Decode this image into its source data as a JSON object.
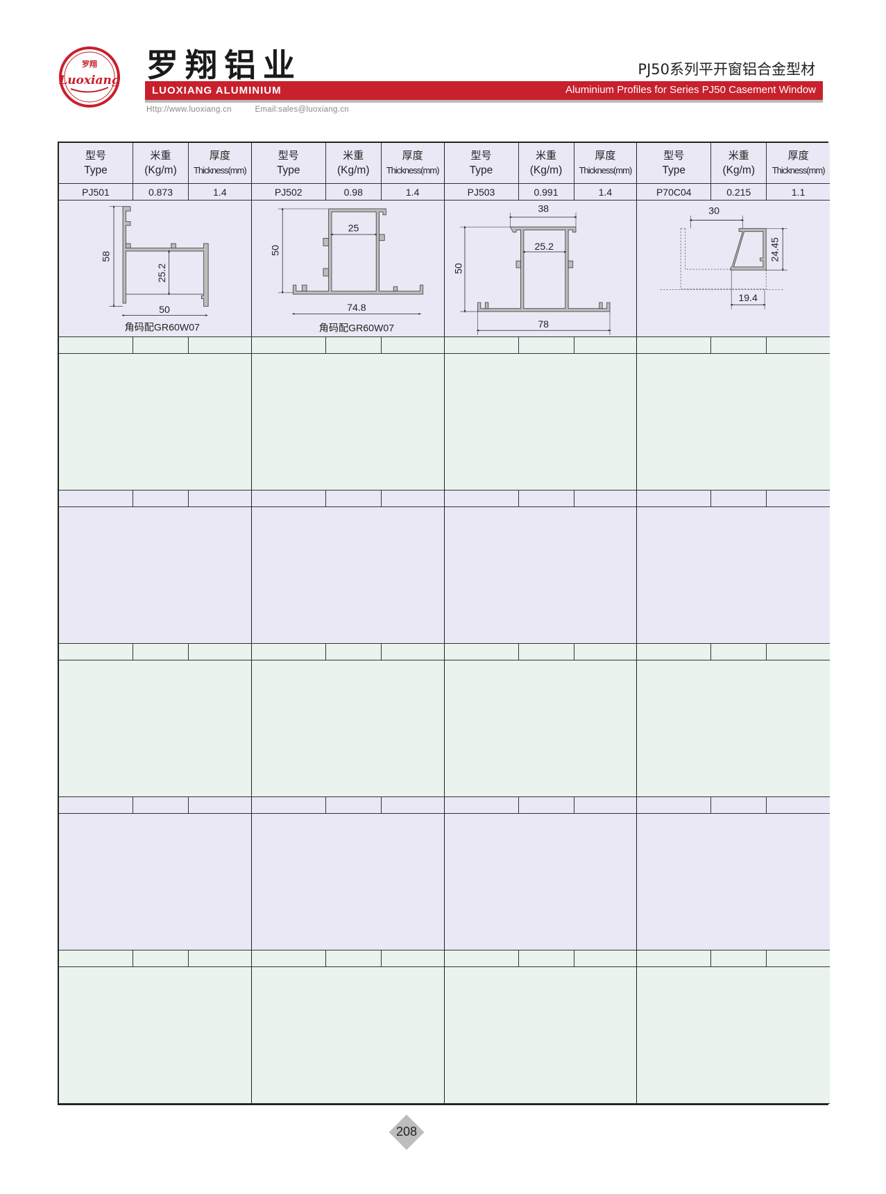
{
  "header": {
    "logo_text_cn": "罗翔",
    "logo_text_en": "Luoxiang",
    "brand_cn": "罗翔铝业",
    "brand_en": "LUOXIANG ALUMINIUM",
    "title_cn": "PJ50系列平开窗铝合金型材",
    "subtitle_en": "Aluminium Profiles for Series PJ50 Casement Window",
    "website": "Http://www.luoxiang.cn",
    "email": "Email:sales@luoxiang.cn",
    "colors": {
      "brand_red": "#c8202c",
      "row_lavender": "#e9e8f4",
      "row_green": "#eaf3ee"
    }
  },
  "table": {
    "columns": [
      {
        "cn": "型号",
        "en": "Type"
      },
      {
        "cn": "米重",
        "en": "(Kg/m)"
      },
      {
        "cn": "厚度",
        "en": "Thickness(mm)"
      }
    ],
    "profiles": [
      {
        "type": "PJ501",
        "weight": "0.873",
        "thickness": "1.4",
        "dims": {
          "height": "58",
          "inner": "25.2",
          "width": "50"
        },
        "caption": "角码配GR60W07"
      },
      {
        "type": "PJ502",
        "weight": "0.98",
        "thickness": "1.4",
        "dims": {
          "height": "50",
          "inner": "25",
          "width": "74.8"
        },
        "caption": "角码配GR60W07"
      },
      {
        "type": "PJ503",
        "weight": "0.991",
        "thickness": "1.4",
        "dims": {
          "top": "38",
          "inner": "25.2",
          "height": "50",
          "width": "78"
        }
      },
      {
        "type": "P70C04",
        "weight": "0.215",
        "thickness": "1.1",
        "dims": {
          "top": "30",
          "height": "24.45",
          "bottom": "19.4"
        }
      }
    ],
    "empty_blocks": 5
  },
  "footer": {
    "page_number": "208"
  }
}
